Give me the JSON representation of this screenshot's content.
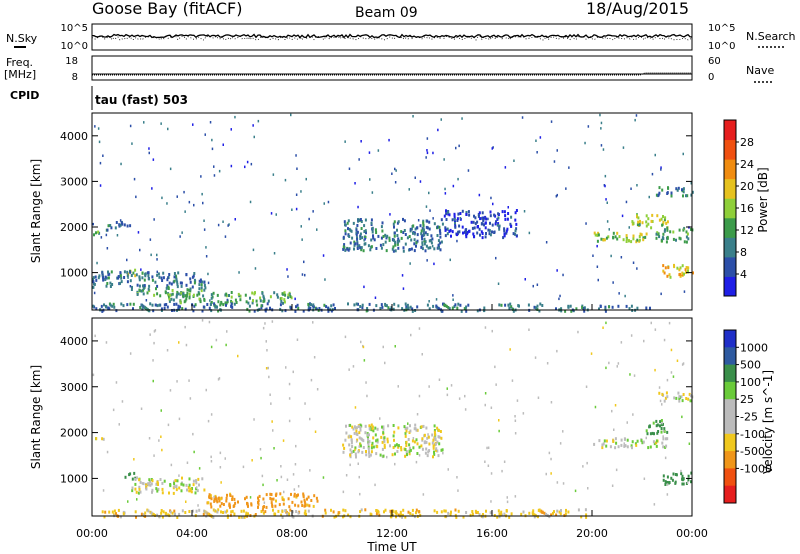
{
  "header": {
    "site": "Goose Bay (fitACF)",
    "beam": "Beam 09",
    "date": "18/Aug/2015"
  },
  "noise_panel": {
    "left_label": "N.Sky",
    "right_label": "N.Search",
    "left_ticks": [
      "10^5",
      "10^0"
    ],
    "right_ticks": [
      "10^5",
      "10^0"
    ]
  },
  "freq_panel": {
    "left_label_top": "Freq.",
    "left_label_bottom": "[MHz]",
    "right_label": "Nave",
    "left_ticks": [
      "18",
      "8"
    ],
    "right_ticks": [
      "60",
      "0"
    ]
  },
  "cpid_panel": {
    "label": "CPID",
    "text": "tau (fast) 503"
  },
  "colors": {
    "power_scale": [
      "#1f1fe6",
      "#2c4fa8",
      "#3a7f8a",
      "#3c9b4a",
      "#8fcf3a",
      "#e6c21f",
      "#f08c10",
      "#f05010",
      "#e61e1e"
    ],
    "velocity_scale": [
      "#e61e1e",
      "#f05010",
      "#f0961a",
      "#f0c81e",
      "#bcbcbc",
      "#bcbcbc",
      "#6acb3a",
      "#3a8f4a",
      "#2e5aa0",
      "#1f2fc8"
    ]
  },
  "chart_data": [
    {
      "type": "heatmap",
      "title": "",
      "xlabel": "",
      "ylabel": "Slant Range [km]",
      "colorbar_label": "Power [dB]",
      "colorbar_ticks": [
        "4",
        "8",
        "12",
        "16",
        "20",
        "24",
        "28"
      ],
      "colorbar_range": [
        0,
        32
      ],
      "xlim": [
        "00:00",
        "00:00"
      ],
      "ylim": [
        180,
        4500
      ],
      "yticks": [
        "1000",
        "2000",
        "3000",
        "4000"
      ],
      "regions": [
        {
          "t0": 0.0,
          "t1": 0.5,
          "r0": 1850,
          "r1": 1950,
          "power": 12
        },
        {
          "t0": 0.5,
          "t1": 1.5,
          "r0": 1950,
          "r1": 2150,
          "power": 8
        },
        {
          "t0": 1.3,
          "t1": 1.7,
          "r0": 950,
          "r1": 1150,
          "power": 16
        },
        {
          "t0": 0.0,
          "t1": 4.5,
          "r0": 700,
          "r1": 1050,
          "power": 8
        },
        {
          "t0": 1.5,
          "t1": 4.5,
          "r0": 500,
          "r1": 700,
          "power": 12
        },
        {
          "t0": 3.0,
          "t1": 8.0,
          "r0": 350,
          "r1": 600,
          "power": 12
        },
        {
          "t0": 0.0,
          "t1": 18.0,
          "r0": 180,
          "r1": 350,
          "power": 8
        },
        {
          "t0": 18.5,
          "t1": 22.5,
          "r0": 180,
          "r1": 300,
          "power": 8
        },
        {
          "t0": 10.0,
          "t1": 14.0,
          "r0": 1500,
          "r1": 2200,
          "power": 8
        },
        {
          "t0": 14.0,
          "t1": 17.0,
          "r0": 1800,
          "r1": 2400,
          "power": 4
        },
        {
          "t0": 20.0,
          "t1": 22.5,
          "r0": 1700,
          "r1": 1900,
          "power": 16
        },
        {
          "t0": 22.5,
          "t1": 24.0,
          "r0": 1700,
          "r1": 2000,
          "power": 12
        },
        {
          "t0": 21.5,
          "t1": 23.0,
          "r0": 2000,
          "r1": 2300,
          "power": 16
        },
        {
          "t0": 22.8,
          "t1": 24.0,
          "r0": 900,
          "r1": 1200,
          "power": 20
        },
        {
          "t0": 22.5,
          "t1": 24.0,
          "r0": 2700,
          "r1": 2900,
          "power": 8
        }
      ]
    },
    {
      "type": "heatmap",
      "title": "",
      "xlabel": "Time UT",
      "ylabel": "Slant Range [km]",
      "colorbar_label": "Velocity [m s^-1]",
      "colorbar_ticks": [
        "-1000",
        "-500",
        "-100",
        "-25",
        "25",
        "100",
        "500",
        "1000"
      ],
      "xlim": [
        "00:00",
        "00:00"
      ],
      "xticks": [
        "00:00",
        "04:00",
        "08:00",
        "12:00",
        "16:00",
        "20:00",
        "00:00"
      ],
      "ylim": [
        180,
        4500
      ],
      "yticks": [
        "1000",
        "2000",
        "3000",
        "4000"
      ],
      "regions": [
        {
          "t0": 0.0,
          "t1": 0.5,
          "r0": 1850,
          "r1": 1950,
          "velocity": 0
        },
        {
          "t0": 1.3,
          "t1": 1.7,
          "r0": 950,
          "r1": 1150,
          "velocity": 150
        },
        {
          "t0": 1.5,
          "t1": 4.5,
          "r0": 700,
          "r1": 1050,
          "velocity": 0
        },
        {
          "t0": 4.5,
          "t1": 9.0,
          "r0": 400,
          "r1": 700,
          "velocity": -150
        },
        {
          "t0": 0.0,
          "t1": 20.0,
          "r0": 180,
          "r1": 350,
          "velocity": -60
        },
        {
          "t0": 10.0,
          "t1": 14.0,
          "r0": 1500,
          "r1": 2200,
          "velocity": 0
        },
        {
          "t0": 20.0,
          "t1": 23.0,
          "r0": 1700,
          "r1": 1900,
          "velocity": 0
        },
        {
          "t0": 22.0,
          "t1": 23.0,
          "r0": 2000,
          "r1": 2300,
          "velocity": 150
        },
        {
          "t0": 22.8,
          "t1": 24.0,
          "r0": 900,
          "r1": 1200,
          "velocity": 300
        },
        {
          "t0": 22.5,
          "t1": 24.0,
          "r0": 2700,
          "r1": 2900,
          "velocity": 0
        }
      ]
    }
  ]
}
